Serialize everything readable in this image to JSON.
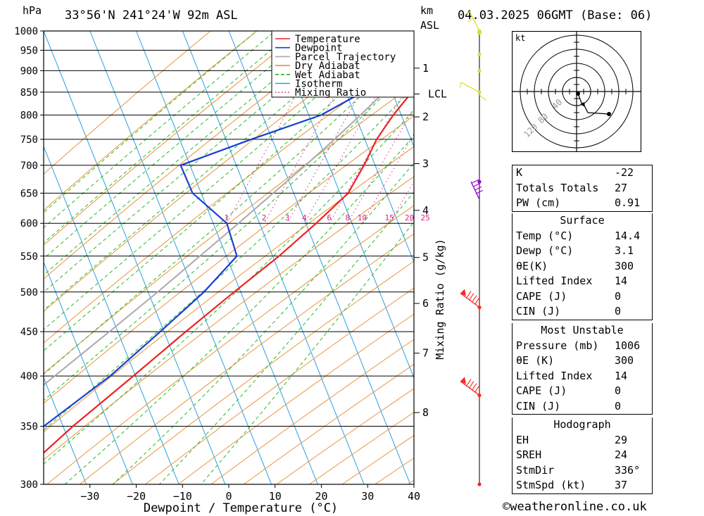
{
  "header": {
    "hpa_unit": "hPa",
    "location": "33°56'N  241°24'W  92m  ASL",
    "km_unit": "km",
    "asl_unit": "ASL",
    "datetime": "04.03.2025  06GMT  (Base: 06)"
  },
  "chart_data": {
    "type": "line",
    "xlabel": "Dewpoint / Temperature (°C)",
    "y2label": "Mixing Ratio (g/kg)",
    "xlim": [
      -40,
      40
    ],
    "ylim": [
      1000,
      300
    ],
    "y_scale": "log-pressure",
    "skew_degC_per_decade": 75,
    "x_ticks": [
      -30,
      -20,
      -10,
      0,
      10,
      20,
      30,
      40
    ],
    "pressure_levels": [
      300,
      350,
      400,
      450,
      500,
      550,
      600,
      650,
      700,
      750,
      800,
      850,
      900,
      950,
      1000
    ],
    "km_levels": [
      {
        "label": "1",
        "p": 906
      },
      {
        "label": "2",
        "p": 796
      },
      {
        "label": "3",
        "p": 703
      },
      {
        "label": "4",
        "p": 621
      },
      {
        "label": "5",
        "p": 548
      },
      {
        "label": "6",
        "p": 485
      },
      {
        "label": "7",
        "p": 425
      },
      {
        "label": "8",
        "p": 363
      },
      {
        "label": "LCL",
        "p": 846
      }
    ],
    "mixing_ratios": [
      1,
      2,
      3,
      4,
      6,
      8,
      10,
      15,
      20,
      25
    ],
    "mixing_label_p": 600,
    "legend": [
      {
        "name": "Temperature",
        "color": "#ee2222",
        "dash": "solid"
      },
      {
        "name": "Dewpoint",
        "color": "#1a3fd0",
        "dash": "solid"
      },
      {
        "name": "Parcel Trajectory",
        "color": "#aaaaaa",
        "dash": "solid"
      },
      {
        "name": "Dry Adiabat",
        "color": "#e8943a",
        "dash": "solid"
      },
      {
        "name": "Wet Adiabat",
        "color": "#22bb22",
        "dash": "dashed"
      },
      {
        "name": "Isotherm",
        "color": "#2aa0e0",
        "dash": "solid"
      },
      {
        "name": "Mixing Ratio",
        "color": "#dd2288",
        "dash": "dotted"
      }
    ],
    "series": [
      {
        "name": "Temperature",
        "points": [
          [
            1000,
            14.4
          ],
          [
            950,
            11
          ],
          [
            900,
            8.6
          ],
          [
            850,
            5.6
          ],
          [
            800,
            3.6
          ],
          [
            750,
            2.1
          ],
          [
            700,
            1.6
          ],
          [
            650,
            0.6
          ],
          [
            600,
            -3.7
          ],
          [
            550,
            -8.9
          ],
          [
            500,
            -15.5
          ],
          [
            450,
            -22.5
          ],
          [
            400,
            -30
          ],
          [
            350,
            -38.7
          ],
          [
            300,
            -47.5
          ]
        ]
      },
      {
        "name": "Dewpoint",
        "points": [
          [
            1000,
            3.1
          ],
          [
            990,
            2
          ],
          [
            950,
            0
          ],
          [
            900,
            -3
          ],
          [
            850,
            -5
          ],
          [
            800,
            -12
          ],
          [
            750,
            -25
          ],
          [
            700,
            -38
          ],
          [
            650,
            -33
          ],
          [
            600,
            -23
          ],
          [
            550,
            -18
          ],
          [
            500,
            -22
          ],
          [
            450,
            -28
          ],
          [
            400,
            -35
          ],
          [
            350,
            -45
          ],
          [
            300,
            -55
          ]
        ]
      },
      {
        "name": "Parcel Trajectory",
        "points": [
          [
            1000,
            14.4
          ],
          [
            950,
            9.5
          ],
          [
            900,
            4.5
          ],
          [
            846,
            -0.6
          ],
          [
            800,
            -3.5
          ],
          [
            750,
            -7
          ],
          [
            700,
            -11
          ],
          [
            650,
            -15.6
          ],
          [
            600,
            -20.5
          ],
          [
            550,
            -26
          ],
          [
            500,
            -32
          ],
          [
            450,
            -39
          ],
          [
            400,
            -47
          ],
          [
            350,
            -56
          ],
          [
            300,
            -66
          ]
        ]
      }
    ]
  },
  "wind_barbs": {
    "colors": {
      "upper": "#ff2222",
      "mid": "#9900cc",
      "low": "#d8e030"
    },
    "levels": [
      {
        "p": 300,
        "group": "upper"
      },
      {
        "p": 380,
        "group": "upper"
      },
      {
        "p": 480,
        "group": "upper"
      },
      {
        "p": 670,
        "group": "mid"
      },
      {
        "p": 850,
        "group": "low"
      },
      {
        "p": 900,
        "group": "low"
      },
      {
        "p": 940,
        "group": "low"
      },
      {
        "p": 1000,
        "group": "low"
      }
    ]
  },
  "hodograph": {
    "unit": "kt",
    "ring_labels": [
      "40",
      "80",
      "120"
    ],
    "trace_color": "#000000"
  },
  "stats": {
    "k_label": "K",
    "k_value": "-22",
    "tt_label": "Totals Totals",
    "tt_value": "27",
    "pw_label": "PW (cm)",
    "pw_value": "0.91"
  },
  "surface": {
    "title": "Surface",
    "temp_label": "Temp (°C)",
    "temp_value": "14.4",
    "dewp_label": "Dewp (°C)",
    "dewp_value": "3.1",
    "theta_e_label": "θE(K)",
    "theta_e_value": "300",
    "li_label": "Lifted Index",
    "li_value": "14",
    "cape_label": "CAPE (J)",
    "cape_value": "0",
    "cin_label": "CIN (J)",
    "cin_value": "0"
  },
  "most_unstable": {
    "title": "Most Unstable",
    "pressure_label": "Pressure (mb)",
    "pressure_value": "1006",
    "theta_e_label": "θE (K)",
    "theta_e_value": "300",
    "li_label": "Lifted Index",
    "li_value": "14",
    "cape_label": "CAPE (J)",
    "cape_value": "0",
    "cin_label": "CIN (J)",
    "cin_value": "0"
  },
  "hodo_stats": {
    "title": "Hodograph",
    "eh_label": "EH",
    "eh_value": "29",
    "sreh_label": "SREH",
    "sreh_value": "24",
    "stmdir_label": "StmDir",
    "stmdir_value": "336°",
    "stmspd_label": "StmSpd (kt)",
    "stmspd_value": "37"
  },
  "credit": "©weatheronline.co.uk"
}
